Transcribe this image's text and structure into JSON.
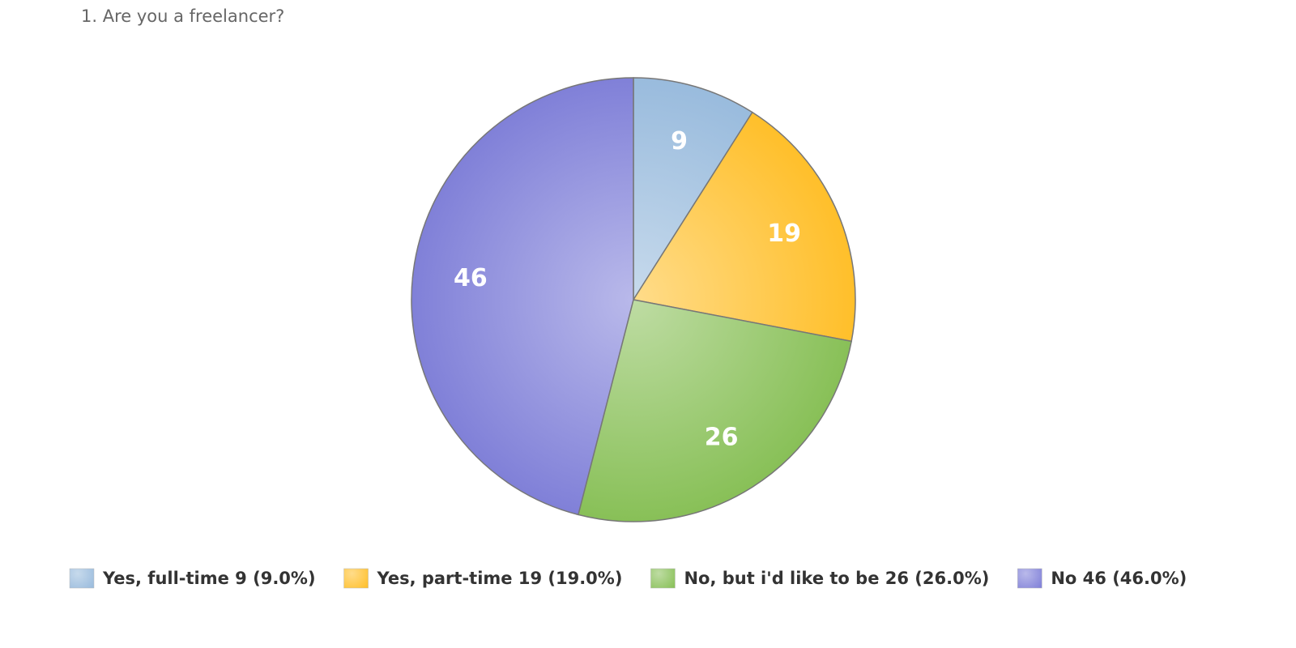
{
  "chart_data": {
    "type": "pie",
    "title": "1. Are you a freelancer?",
    "labels": [
      "Yes, full-time 9 (9.0%)",
      "Yes, part-time 19 (19.0%)",
      "No, but i'd like to be 26 (26.0%)",
      "No 46 (46.0%)"
    ],
    "values": [
      9,
      19,
      26,
      46
    ],
    "colors": [
      "#99bbdd",
      "#ffbf2a",
      "#88c057",
      "#8080d8"
    ],
    "legend": "bottom"
  }
}
